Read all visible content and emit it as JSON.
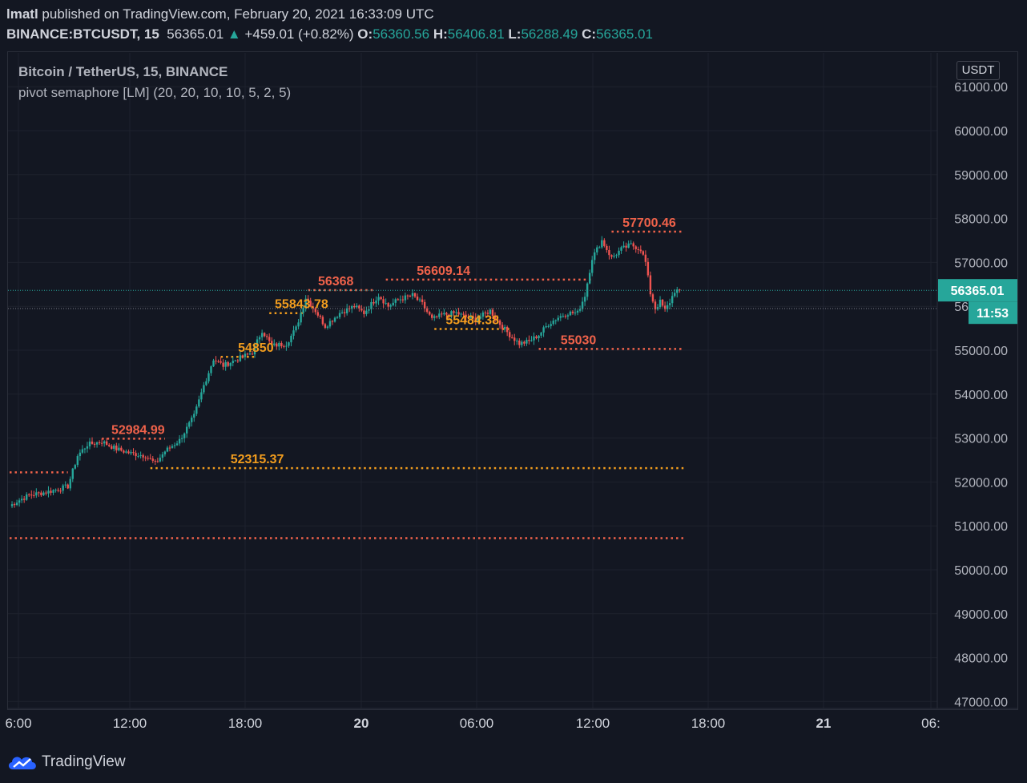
{
  "header": {
    "author": "lmatl",
    "published_text": "published on TradingView.com, February 20, 2021 16:33:09 UTC",
    "symbol": "BINANCE:BTCUSDT, 15",
    "last": "56365.01",
    "change": "+459.01 (+0.82%)",
    "o_label": "O:",
    "o_value": "56360.56",
    "h_label": "H:",
    "h_value": "56406.81",
    "l_label": "L:",
    "l_value": "56288.49",
    "c_label": "C:",
    "c_value": "56365.01"
  },
  "legend": {
    "title": "Bitcoin / TetherUS, 15, BINANCE",
    "indicator": "pivot semaphore [LM] (20, 20, 10, 10, 5, 2, 5)"
  },
  "axis": {
    "currency": "USDT",
    "price_badge": "56365.01",
    "countdown_badge": "11:53"
  },
  "footer": {
    "brand": "TradingView"
  },
  "colors": {
    "background": "#131722",
    "up": "#26a69a",
    "down": "#ef5350",
    "pivot_major": "#f0624a",
    "pivot_minor": "#f29d1e",
    "grid": "#1e222d"
  },
  "chart_data": {
    "type": "candlestick",
    "title": "Bitcoin / TetherUS, 15, BINANCE",
    "ylim": [
      46900,
      61800
    ],
    "y_ticks": [
      47000,
      48000,
      49000,
      50000,
      51000,
      52000,
      53000,
      54000,
      55000,
      56000,
      57000,
      58000,
      59000,
      60000,
      61000
    ],
    "x_ticks": [
      "6:00",
      "12:00",
      "18:00",
      "20",
      "06:00",
      "12:00",
      "18:00",
      "21",
      "06:"
    ],
    "grid": true,
    "legend": "top-left",
    "price_trend": [
      [
        0,
        51450
      ],
      [
        3,
        51560
      ],
      [
        8,
        51700
      ],
      [
        16,
        51780
      ],
      [
        24,
        51900
      ],
      [
        28,
        52600
      ],
      [
        32,
        52850
      ],
      [
        38,
        52920
      ],
      [
        44,
        52750
      ],
      [
        50,
        52650
      ],
      [
        56,
        52600
      ],
      [
        60,
        52420
      ],
      [
        64,
        52700
      ],
      [
        70,
        52950
      ],
      [
        76,
        53500
      ],
      [
        80,
        54200
      ],
      [
        84,
        54800
      ],
      [
        88,
        54650
      ],
      [
        94,
        54800
      ],
      [
        100,
        54950
      ],
      [
        104,
        55450
      ],
      [
        108,
        55100
      ],
      [
        114,
        55150
      ],
      [
        118,
        55500
      ],
      [
        122,
        56200
      ],
      [
        126,
        55900
      ],
      [
        130,
        55550
      ],
      [
        136,
        55850
      ],
      [
        142,
        56000
      ],
      [
        146,
        55850
      ],
      [
        152,
        56250
      ],
      [
        156,
        56000
      ],
      [
        160,
        56150
      ],
      [
        166,
        56250
      ],
      [
        170,
        56050
      ],
      [
        174,
        55700
      ],
      [
        178,
        55800
      ],
      [
        184,
        55850
      ],
      [
        188,
        55750
      ],
      [
        192,
        55700
      ],
      [
        198,
        55900
      ],
      [
        202,
        55600
      ],
      [
        206,
        55350
      ],
      [
        210,
        55150
      ],
      [
        214,
        55200
      ],
      [
        218,
        55350
      ],
      [
        222,
        55600
      ],
      [
        226,
        55750
      ],
      [
        230,
        55850
      ],
      [
        234,
        55850
      ],
      [
        237,
        56250
      ],
      [
        240,
        57100
      ],
      [
        244,
        57500
      ],
      [
        248,
        57100
      ],
      [
        252,
        57300
      ],
      [
        256,
        57400
      ],
      [
        260,
        57300
      ],
      [
        262,
        57000
      ],
      [
        264,
        56300
      ],
      [
        266,
        55950
      ],
      [
        268,
        56100
      ],
      [
        270,
        55900
      ],
      [
        272,
        56100
      ],
      [
        274,
        56350
      ],
      [
        276,
        56365
      ]
    ],
    "pivots": [
      {
        "label": "",
        "price": 52220,
        "from": 0,
        "to": 24,
        "kind": "major"
      },
      {
        "label": "52984.99",
        "price": 52985,
        "from": 38,
        "to": 64,
        "kind": "major"
      },
      {
        "label": "52315.37",
        "price": 52315,
        "from": 58,
        "to": 278,
        "kind": "minor"
      },
      {
        "label": "",
        "price": 50720,
        "from": 0,
        "to": 278,
        "kind": "major"
      },
      {
        "label": "",
        "price": 54850,
        "from": 87,
        "to": 102,
        "kind": "minor"
      },
      {
        "label": "54850",
        "price": 54850,
        "from": 104,
        "to": 104,
        "kind": "minor"
      },
      {
        "label": "55843.78",
        "price": 55844,
        "from": 107,
        "to": 122,
        "kind": "minor"
      },
      {
        "label": "56368",
        "price": 56368,
        "from": 123,
        "to": 150,
        "kind": "major"
      },
      {
        "label": "56609.14",
        "price": 56609,
        "from": 155,
        "to": 240,
        "kind": "major"
      },
      {
        "label": "55484.38",
        "price": 55484,
        "from": 175,
        "to": 206,
        "kind": "minor"
      },
      {
        "label": "55030",
        "price": 55030,
        "from": 218,
        "to": 278,
        "kind": "major"
      },
      {
        "label": "57700.46",
        "price": 57700,
        "from": 248,
        "to": 278,
        "kind": "major"
      }
    ]
  }
}
